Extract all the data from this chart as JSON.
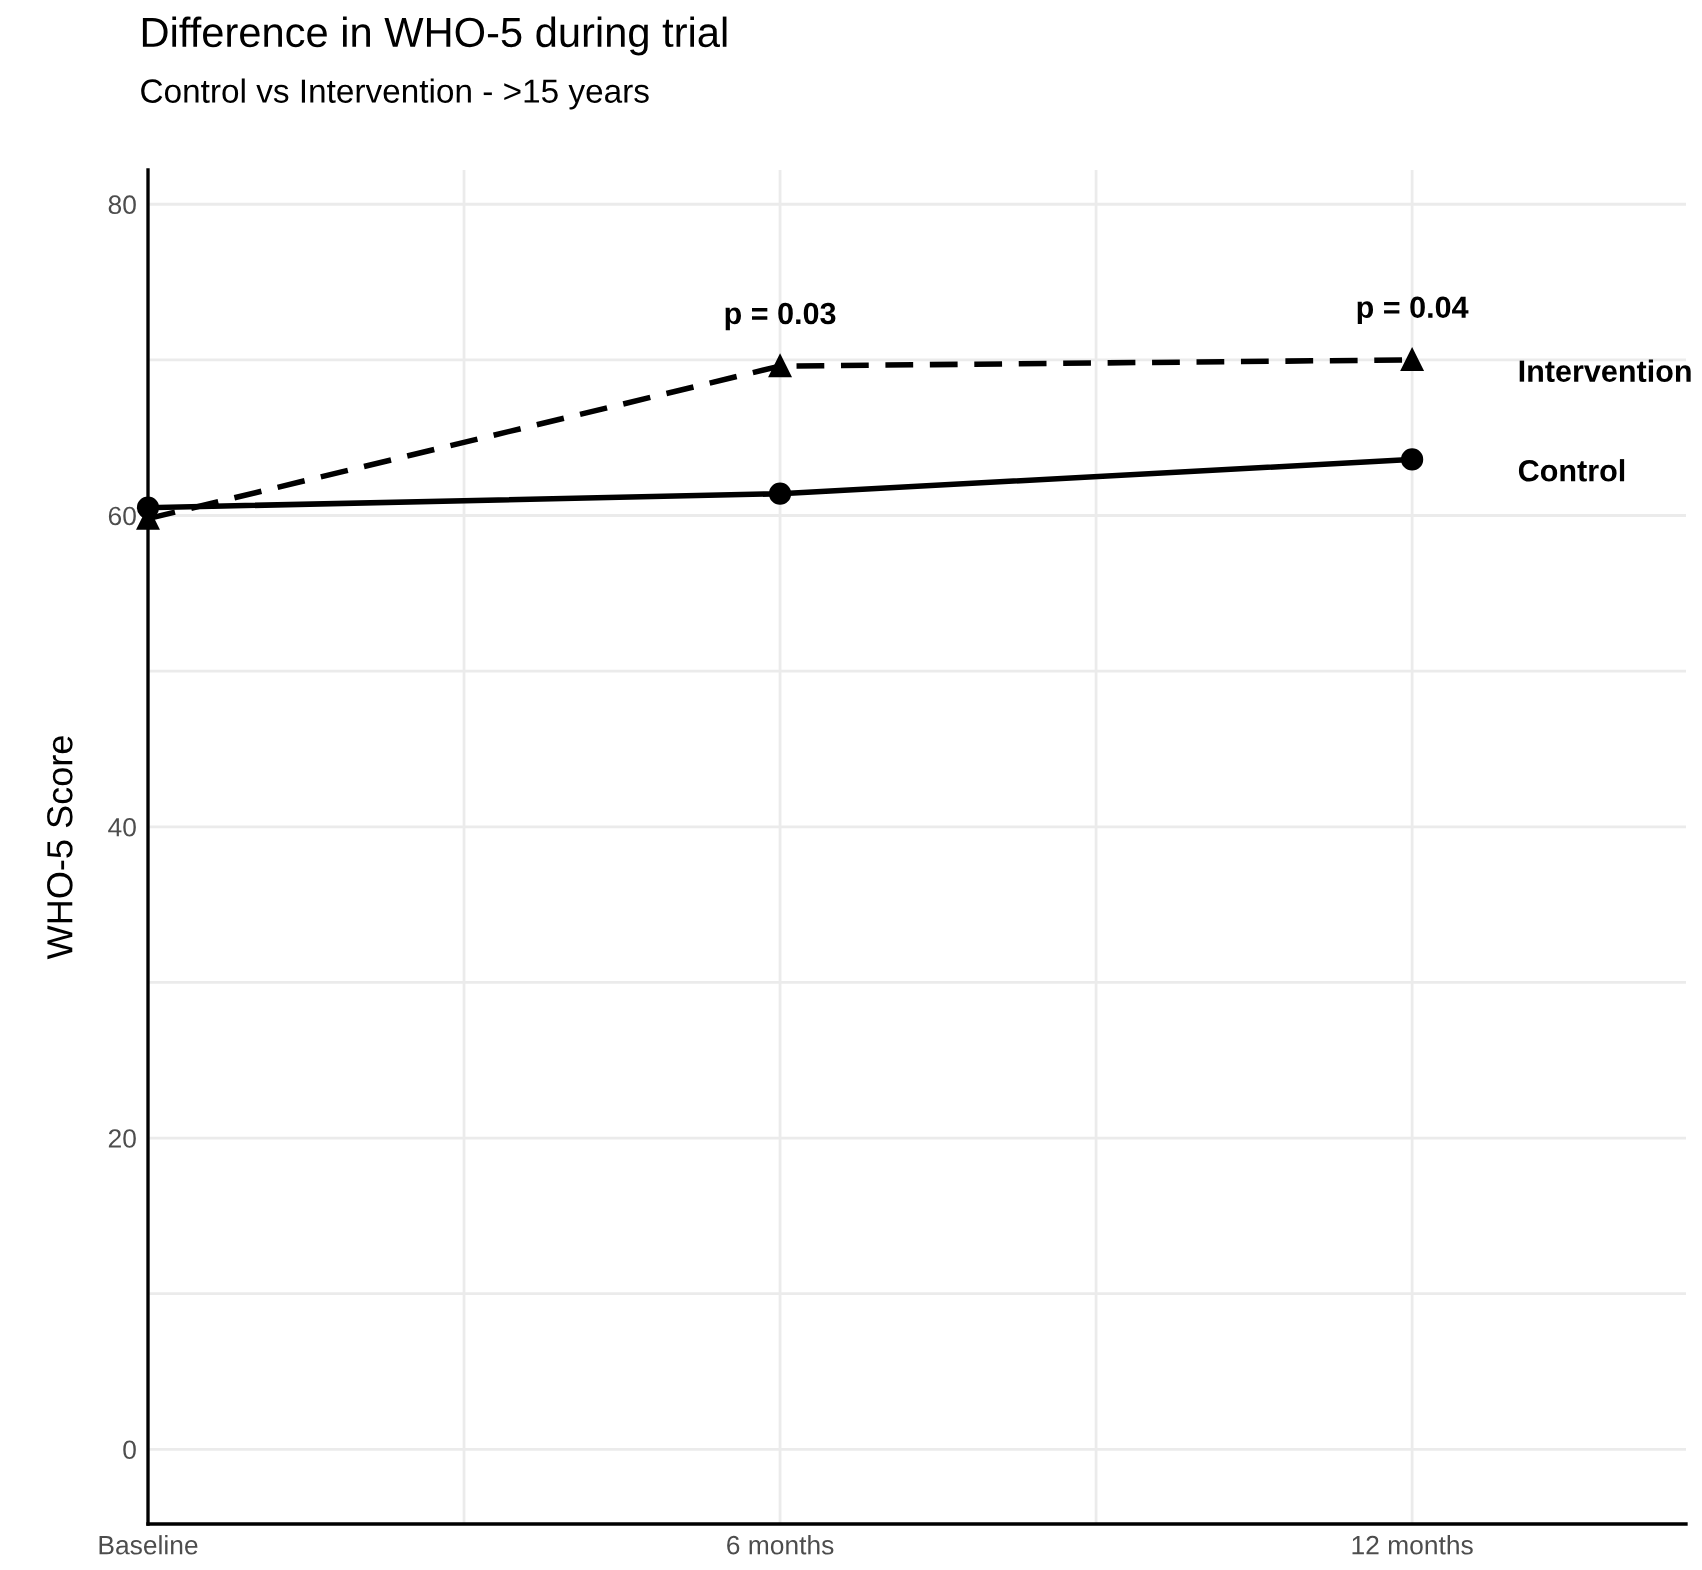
{
  "chart_data": {
    "type": "line",
    "title": "Difference in WHO-5 during trial",
    "subtitle": "Control vs Intervention - >15 years",
    "ylabel": "WHO-5 Score",
    "x": [
      0,
      6,
      12
    ],
    "series": [
      {
        "name": "Control",
        "color": "#000000",
        "values": [
          60.5,
          61.4,
          63.6
        ],
        "marker": "circle",
        "line_style": "solid"
      },
      {
        "name": "Intervention",
        "color": "#000000",
        "values": [
          59.8,
          69.6,
          70.0
        ],
        "marker": "triangle",
        "line_style": "dashed"
      }
    ],
    "annotations": [
      {
        "text": "p = 0.03",
        "x": 6,
        "y": 69.6
      },
      {
        "text": "p = 0.04",
        "x": 12,
        "y": 70.0
      }
    ],
    "xlim": [
      0,
      14.6
    ],
    "ylim": [
      -4.8,
      82.2
    ],
    "xticks": [
      {
        "value": 0,
        "label": "Baseline"
      },
      {
        "value": 3,
        "label": null
      },
      {
        "value": 6,
        "label": "6 months"
      },
      {
        "value": 9,
        "label": null
      },
      {
        "value": 12,
        "label": "12 months"
      }
    ],
    "yticks": [
      0,
      {
        "value": 10,
        "label": null
      },
      20,
      {
        "value": 30,
        "label": null
      },
      40,
      {
        "value": 50,
        "label": null
      },
      60,
      {
        "value": 70,
        "label": null
      },
      80
    ],
    "grid": true,
    "legend": false
  }
}
